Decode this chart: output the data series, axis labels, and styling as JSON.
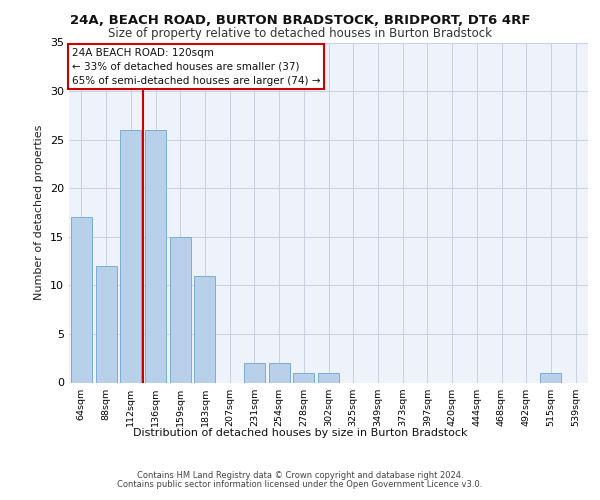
{
  "title1": "24A, BEACH ROAD, BURTON BRADSTOCK, BRIDPORT, DT6 4RF",
  "title2": "Size of property relative to detached houses in Burton Bradstock",
  "xlabel": "Distribution of detached houses by size in Burton Bradstock",
  "ylabel": "Number of detached properties",
  "bins": [
    "64sqm",
    "88sqm",
    "112sqm",
    "136sqm",
    "159sqm",
    "183sqm",
    "207sqm",
    "231sqm",
    "254sqm",
    "278sqm",
    "302sqm",
    "325sqm",
    "349sqm",
    "373sqm",
    "397sqm",
    "420sqm",
    "444sqm",
    "468sqm",
    "492sqm",
    "515sqm",
    "539sqm"
  ],
  "counts": [
    17,
    12,
    26,
    26,
    15,
    11,
    0,
    2,
    2,
    1,
    1,
    0,
    0,
    0,
    0,
    0,
    0,
    0,
    0,
    1,
    0
  ],
  "bar_color": "#b8d0ea",
  "bar_edge_color": "#7aadd4",
  "vline_x": 2.5,
  "vline_color": "#cc0000",
  "annotation_line1": "24A BEACH ROAD: 120sqm",
  "annotation_line2": "← 33% of detached houses are smaller (37)",
  "annotation_line3": "65% of semi-detached houses are larger (74) →",
  "annotation_box_color": "#ffffff",
  "annotation_box_edge_color": "#cc0000",
  "ylim": [
    0,
    35
  ],
  "yticks": [
    0,
    5,
    10,
    15,
    20,
    25,
    30,
    35
  ],
  "footer1": "Contains HM Land Registry data © Crown copyright and database right 2024.",
  "footer2": "Contains public sector information licensed under the Open Government Licence v3.0.",
  "bg_color": "#eef2fa",
  "grid_color": "#c8d0e0",
  "title1_fontsize": 9.5,
  "title2_fontsize": 8.5,
  "ylabel_fontsize": 8,
  "xlabel_fontsize": 8,
  "tick_fontsize": 8,
  "xtick_fontsize": 6.8,
  "footer_fontsize": 6.0,
  "ann_fontsize": 7.5
}
